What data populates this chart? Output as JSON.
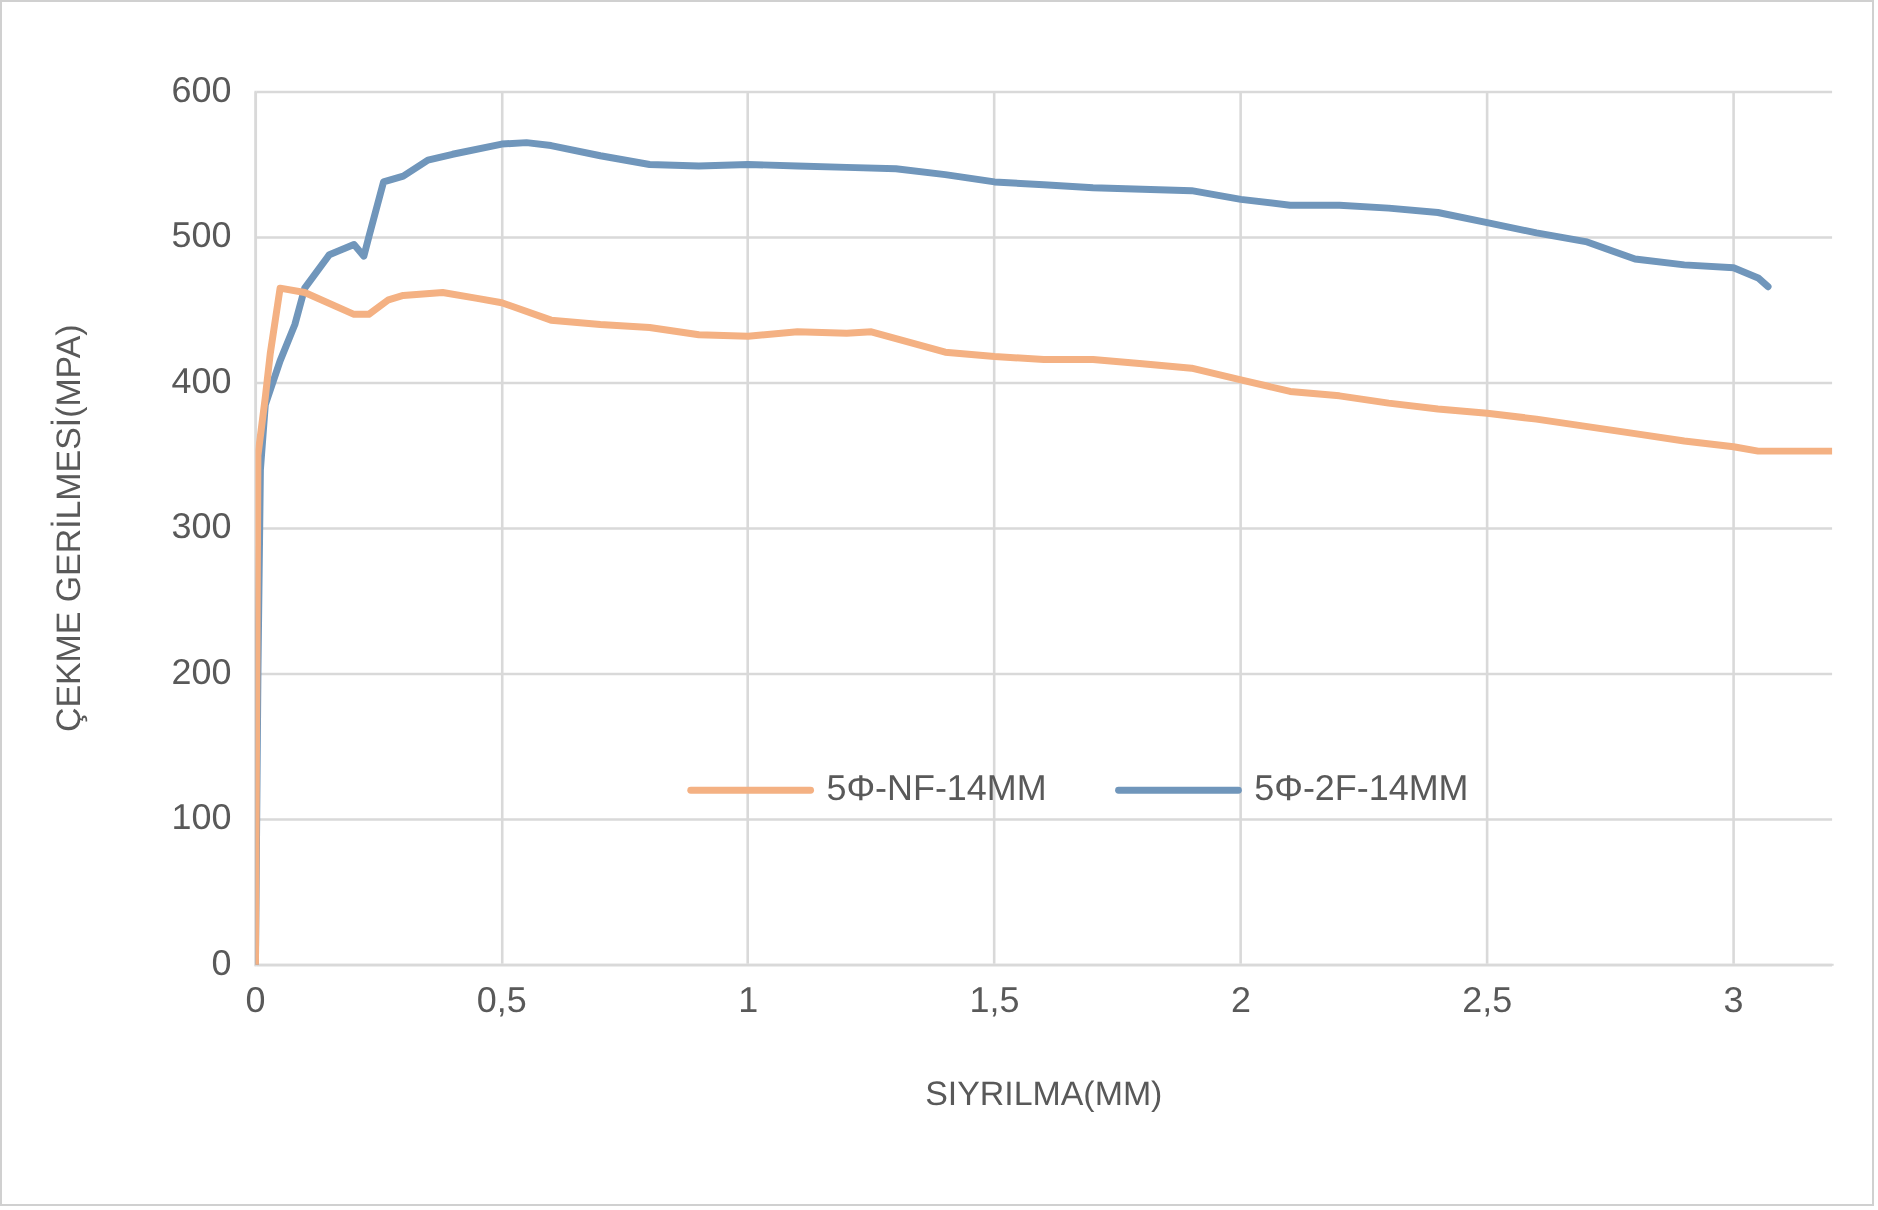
{
  "chart_data": {
    "type": "line",
    "xlabel": "SIYRILMA(MM)",
    "ylabel": "ÇEKME GERİLMESİ(MPA)",
    "xlim": [
      0,
      3.2
    ],
    "xticks": [
      {
        "value": 0,
        "label": "0"
      },
      {
        "value": 0.5,
        "label": "0,5"
      },
      {
        "value": 1,
        "label": "1"
      },
      {
        "value": 1.5,
        "label": "1,5"
      },
      {
        "value": 2,
        "label": "2"
      },
      {
        "value": 2.5,
        "label": "2,5"
      },
      {
        "value": 3,
        "label": "3"
      }
    ],
    "ylim": [
      0,
      600
    ],
    "yticks": [
      0,
      100,
      200,
      300,
      400,
      500,
      600
    ],
    "grid": true,
    "legend": "bottom",
    "marker": "none",
    "line_style": "solid",
    "series": [
      {
        "name": "5Φ-NF-14MM",
        "color": "#f4b183",
        "x": [
          0,
          0.005,
          0.02,
          0.03,
          0.05,
          0.1,
          0.2,
          0.23,
          0.27,
          0.3,
          0.38,
          0.45,
          0.5,
          0.6,
          0.7,
          0.8,
          0.9,
          1.0,
          1.1,
          1.2,
          1.25,
          1.4,
          1.5,
          1.6,
          1.7,
          1.8,
          1.9,
          2.0,
          2.1,
          2.2,
          2.3,
          2.4,
          2.5,
          2.6,
          2.7,
          2.8,
          2.9,
          3.0,
          3.05,
          3.2
        ],
        "values": [
          0,
          350,
          390,
          420,
          465,
          462,
          447,
          447,
          457,
          460,
          462,
          458,
          455,
          443,
          440,
          438,
          433,
          432,
          435,
          434,
          435,
          421,
          418,
          416,
          416,
          413,
          410,
          402,
          394,
          391,
          386,
          382,
          379,
          375,
          370,
          365,
          360,
          356,
          353,
          353
        ]
      },
      {
        "name": "5Φ-2F-14MM",
        "color": "#7096bb",
        "x": [
          0,
          0.005,
          0.01,
          0.02,
          0.05,
          0.08,
          0.1,
          0.15,
          0.2,
          0.22,
          0.23,
          0.26,
          0.3,
          0.35,
          0.4,
          0.5,
          0.55,
          0.6,
          0.7,
          0.8,
          0.9,
          1.0,
          1.1,
          1.2,
          1.3,
          1.4,
          1.5,
          1.6,
          1.7,
          1.8,
          1.9,
          2.0,
          2.1,
          2.2,
          2.3,
          2.4,
          2.5,
          2.6,
          2.7,
          2.8,
          2.9,
          3.0,
          3.05,
          3.07
        ],
        "values": [
          0,
          200,
          340,
          385,
          415,
          440,
          465,
          488,
          495,
          487,
          500,
          538,
          542,
          553,
          557,
          564,
          565,
          563,
          556,
          550,
          549,
          550,
          549,
          548,
          547,
          543,
          538,
          536,
          534,
          533,
          532,
          526,
          522,
          522,
          520,
          517,
          510,
          503,
          497,
          485,
          481,
          479,
          472,
          466
        ]
      }
    ]
  }
}
